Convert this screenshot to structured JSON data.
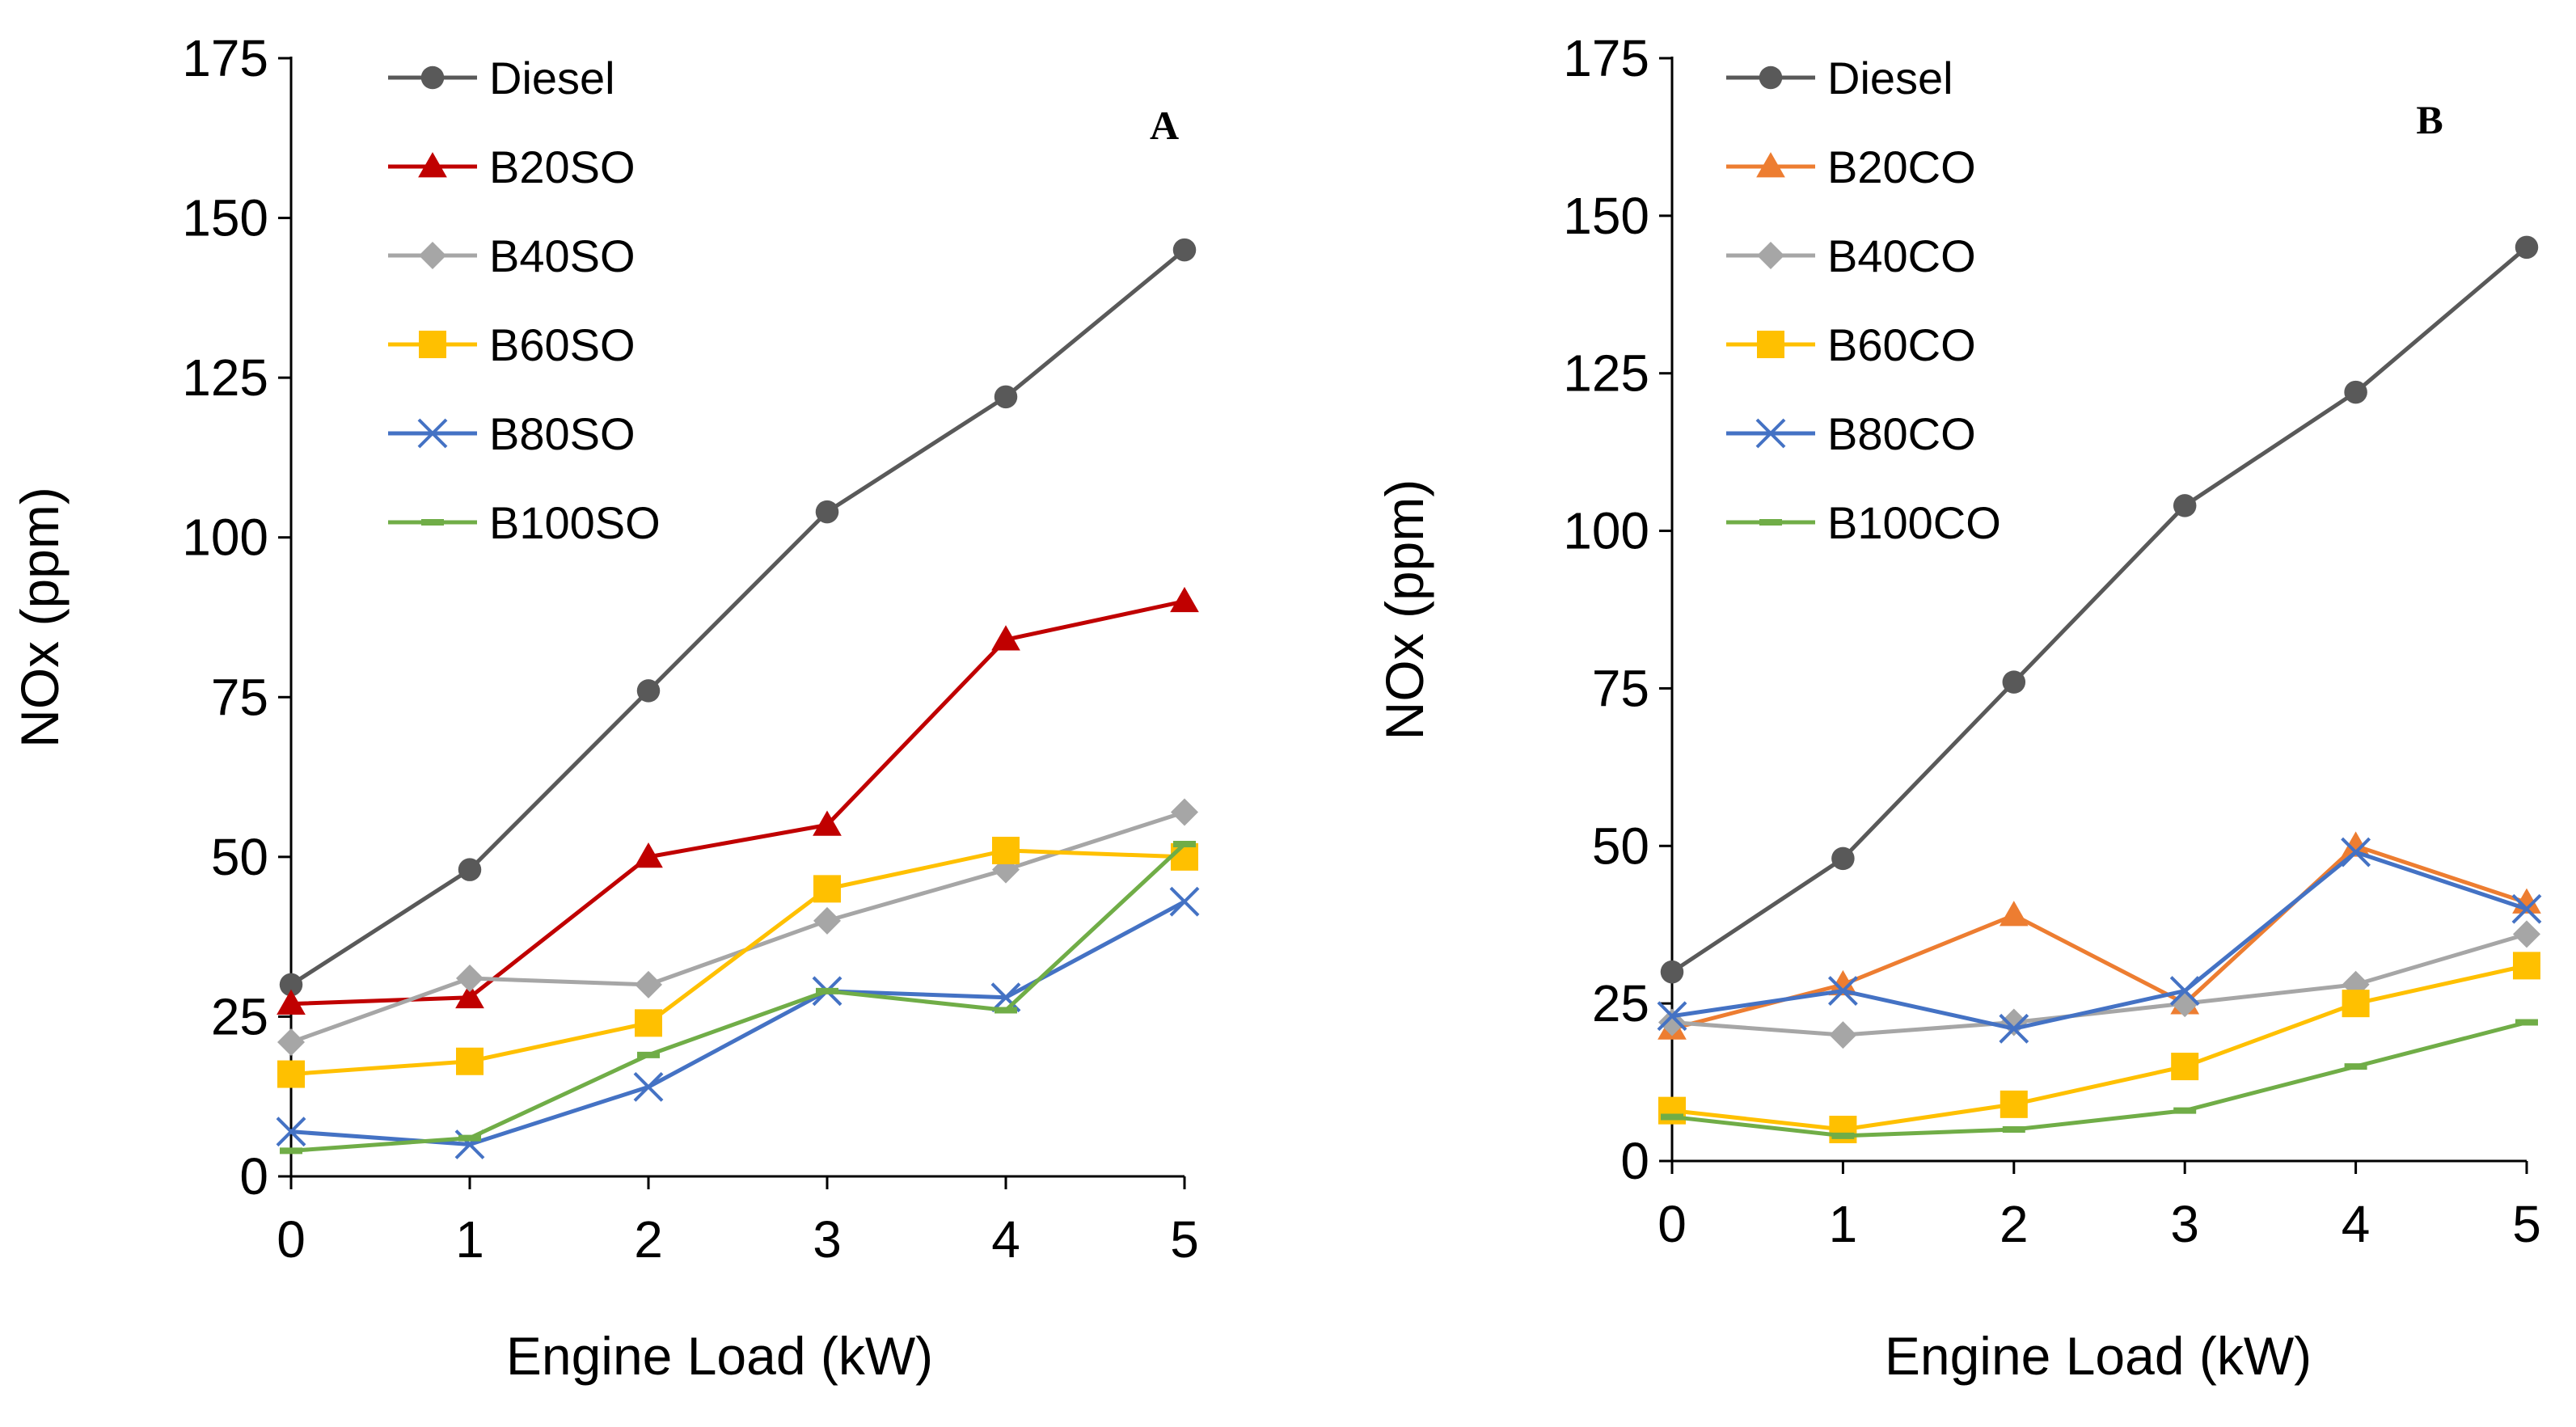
{
  "chart_data": [
    {
      "type": "line",
      "panel_label": "A",
      "xlabel": "Engine Load (kW)",
      "ylabel": "NOx (ppm)",
      "x": [
        0,
        1,
        2,
        3,
        4,
        5
      ],
      "x_ticks": [
        "0",
        "1",
        "2",
        "3",
        "4",
        "5"
      ],
      "xlim": [
        0,
        5
      ],
      "ylim": [
        0,
        175
      ],
      "y_ticks": [
        "0",
        "25",
        "50",
        "75",
        "100",
        "125",
        "150",
        "175"
      ],
      "grid": false,
      "legend_position": "top-left",
      "series": [
        {
          "name": "Diesel",
          "color": "#595959",
          "marker": "circle",
          "values": [
            30,
            48,
            76,
            104,
            122,
            145
          ]
        },
        {
          "name": "B20SO",
          "color": "#C00000",
          "marker": "triangle",
          "values": [
            27,
            28,
            50,
            55,
            84,
            90
          ]
        },
        {
          "name": "B40SO",
          "color": "#A6A6A6",
          "marker": "diamond",
          "values": [
            21,
            31,
            30,
            40,
            48,
            57
          ]
        },
        {
          "name": "B60SO",
          "color": "#FFC000",
          "marker": "square",
          "values": [
            16,
            18,
            24,
            45,
            51,
            50
          ]
        },
        {
          "name": "B80SO",
          "color": "#4472C4",
          "marker": "x",
          "values": [
            7,
            5,
            14,
            29,
            28,
            43
          ]
        },
        {
          "name": "B100SO",
          "color": "#70AD47",
          "marker": "dash",
          "values": [
            4,
            6,
            19,
            29,
            26,
            52
          ]
        }
      ]
    },
    {
      "type": "line",
      "panel_label": "B",
      "xlabel": "Engine Load (kW)",
      "ylabel": "NOx (ppm)",
      "x": [
        0,
        1,
        2,
        3,
        4,
        5
      ],
      "x_ticks": [
        "0",
        "1",
        "2",
        "3",
        "4",
        "5"
      ],
      "xlim": [
        0,
        5
      ],
      "ylim": [
        0,
        175
      ],
      "y_ticks": [
        "0",
        "25",
        "50",
        "75",
        "100",
        "125",
        "150",
        "175"
      ],
      "grid": false,
      "legend_position": "top-left",
      "series": [
        {
          "name": "Diesel",
          "color": "#595959",
          "marker": "circle",
          "values": [
            30,
            48,
            76,
            104,
            122,
            145
          ]
        },
        {
          "name": "B20CO",
          "color": "#ED7D31",
          "marker": "triangle",
          "values": [
            21,
            28,
            39,
            25,
            50,
            41
          ]
        },
        {
          "name": "B40CO",
          "color": "#A6A6A6",
          "marker": "diamond",
          "values": [
            22,
            20,
            22,
            25,
            28,
            36
          ]
        },
        {
          "name": "B60CO",
          "color": "#FFC000",
          "marker": "square",
          "values": [
            8,
            5,
            9,
            15,
            25,
            31
          ]
        },
        {
          "name": "B80CO",
          "color": "#4472C4",
          "marker": "x",
          "values": [
            23,
            27,
            21,
            27,
            49,
            40
          ]
        },
        {
          "name": "B100CO",
          "color": "#70AD47",
          "marker": "dash",
          "values": [
            7,
            4,
            5,
            8,
            15,
            22
          ]
        }
      ]
    }
  ]
}
